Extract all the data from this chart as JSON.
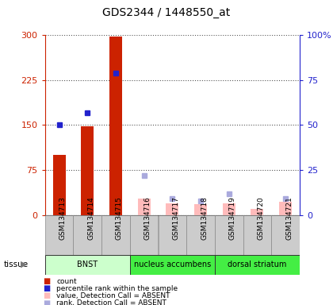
{
  "title": "GDS2344 / 1448550_at",
  "samples": [
    "GSM134713",
    "GSM134714",
    "GSM134715",
    "GSM134716",
    "GSM134717",
    "GSM134718",
    "GSM134719",
    "GSM134720",
    "GSM134721"
  ],
  "count_values": [
    100,
    148,
    297,
    null,
    null,
    null,
    null,
    null,
    null
  ],
  "rank_values_pct": [
    50,
    57,
    79,
    null,
    null,
    null,
    null,
    null,
    null
  ],
  "absent_value_bars": [
    null,
    null,
    null,
    28,
    20,
    18,
    20,
    10,
    22
  ],
  "absent_rank_pct": [
    null,
    null,
    null,
    22,
    9,
    8,
    12,
    null,
    9
  ],
  "ylim_left": [
    0,
    300
  ],
  "ylim_right": [
    0,
    100
  ],
  "yticks_left": [
    0,
    75,
    150,
    225,
    300
  ],
  "yticks_right": [
    0,
    25,
    50,
    75,
    100
  ],
  "ytick_labels_left": [
    "0",
    "75",
    "150",
    "225",
    "300"
  ],
  "ytick_labels_right": [
    "0",
    "25",
    "50",
    "75",
    "100%"
  ],
  "bar_color_count": "#cc2200",
  "bar_color_rank": "#2222cc",
  "bar_color_absent_value": "#ffbbbb",
  "bar_color_absent_rank": "#aaaadd",
  "grid_color": "#555555",
  "bg_color": "#ffffff",
  "plot_bg": "#ffffff",
  "tissue_data": [
    {
      "label": "BNST",
      "start": 0,
      "end": 3,
      "color": "#ccffcc"
    },
    {
      "label": "nucleus accumbens",
      "start": 3,
      "end": 6,
      "color": "#44ee44"
    },
    {
      "label": "dorsal striatum",
      "start": 6,
      "end": 9,
      "color": "#44ee44"
    }
  ],
  "sample_box_color": "#cccccc",
  "bar_width": 0.45,
  "rank_marker_size": 5
}
